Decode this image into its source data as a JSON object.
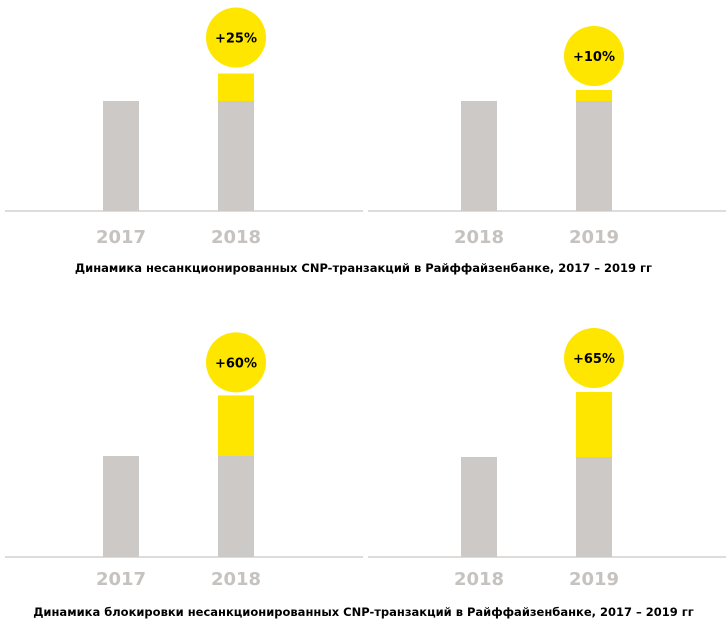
{
  "colors": {
    "base": "#cdc9c6",
    "growth": "#fee600",
    "axis": "#bdb9b6",
    "tick": "#c6c2bf",
    "label": "#000000"
  },
  "captions": {
    "top": "Динамика несанкционированных CNP-транзакций в Райффайзенбанке, 2017 – 2019 гг",
    "bottom": "Динамика блокировки несанкционированных CNP-транзакций в Райффайзенбанке, 2017 – 2019 гг"
  },
  "chart_data": [
    {
      "type": "bar",
      "categories": [
        "2017",
        "2018"
      ],
      "base": 100,
      "values": [
        100,
        125
      ],
      "change_label": "+25%"
    },
    {
      "type": "bar",
      "categories": [
        "2018",
        "2019"
      ],
      "base": 100,
      "values": [
        100,
        110
      ],
      "change_label": "+10%"
    },
    {
      "type": "bar",
      "categories": [
        "2017",
        "2018"
      ],
      "base": 100,
      "values": [
        100,
        160
      ],
      "change_label": "+60%"
    },
    {
      "type": "bar",
      "categories": [
        "2018",
        "2019"
      ],
      "base": 100,
      "values": [
        100,
        165
      ],
      "change_label": "+65%"
    }
  ]
}
